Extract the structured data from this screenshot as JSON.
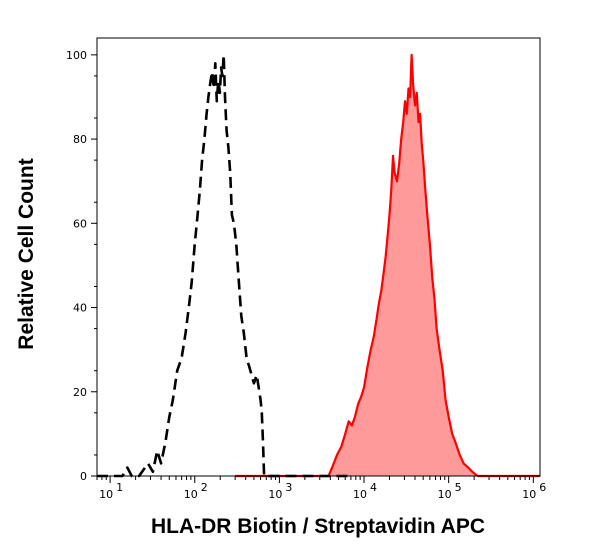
{
  "chart_data": {
    "type": "area",
    "xlabel": "HLA-DR Biotin / Streptavidin APC",
    "ylabel": "Relative Cell Count",
    "x_scale": "log",
    "xlim": [
      7,
      1200000
    ],
    "ylim": [
      0,
      104
    ],
    "x_ticks": [
      {
        "value": 10,
        "base": "10",
        "exp": "1"
      },
      {
        "value": 100,
        "base": "10",
        "exp": "2"
      },
      {
        "value": 1000,
        "base": "10",
        "exp": "3"
      },
      {
        "value": 10000,
        "base": "10",
        "exp": "4"
      },
      {
        "value": 100000,
        "base": "10",
        "exp": "5"
      },
      {
        "value": 1000000,
        "base": "10",
        "exp": "6"
      }
    ],
    "y_ticks": [
      0,
      20,
      40,
      60,
      80,
      100
    ],
    "grid": false,
    "legend": "none",
    "series": [
      {
        "style": "dashed",
        "color": "#000000",
        "fill": "none",
        "points": [
          [
            7,
            0
          ],
          [
            14,
            0
          ],
          [
            16,
            2
          ],
          [
            18,
            0
          ],
          [
            22,
            0
          ],
          [
            28,
            3
          ],
          [
            32,
            1
          ],
          [
            36,
            6
          ],
          [
            40,
            3
          ],
          [
            45,
            8
          ],
          [
            50,
            14
          ],
          [
            55,
            18
          ],
          [
            62,
            25
          ],
          [
            70,
            28
          ],
          [
            78,
            34
          ],
          [
            85,
            40
          ],
          [
            92,
            46
          ],
          [
            100,
            55
          ],
          [
            108,
            62
          ],
          [
            115,
            68
          ],
          [
            122,
            75
          ],
          [
            130,
            80
          ],
          [
            138,
            86
          ],
          [
            145,
            90
          ],
          [
            152,
            93
          ],
          [
            160,
            96
          ],
          [
            168,
            92
          ],
          [
            175,
            98
          ],
          [
            182,
            89
          ],
          [
            190,
            94
          ],
          [
            198,
            91
          ],
          [
            205,
            97
          ],
          [
            212,
            95
          ],
          [
            220,
            100
          ],
          [
            228,
            90
          ],
          [
            238,
            82
          ],
          [
            250,
            78
          ],
          [
            262,
            72
          ],
          [
            275,
            62
          ],
          [
            290,
            60
          ],
          [
            310,
            55
          ],
          [
            330,
            47
          ],
          [
            355,
            38
          ],
          [
            380,
            34
          ],
          [
            410,
            28
          ],
          [
            440,
            26
          ],
          [
            470,
            24
          ],
          [
            500,
            22
          ],
          [
            540,
            24
          ],
          [
            570,
            21
          ],
          [
            600,
            18
          ],
          [
            620,
            15
          ],
          [
            640,
            8
          ],
          [
            660,
            0
          ],
          [
            7000,
            0
          ]
        ]
      },
      {
        "style": "solid",
        "color": "#ff0000",
        "fill": "#ff9a9a",
        "points": [
          [
            300,
            0
          ],
          [
            3800,
            0
          ],
          [
            4200,
            2
          ],
          [
            4800,
            5
          ],
          [
            5400,
            7
          ],
          [
            6000,
            10
          ],
          [
            6600,
            13
          ],
          [
            7200,
            12
          ],
          [
            7800,
            14
          ],
          [
            8500,
            17
          ],
          [
            9300,
            19
          ],
          [
            10000,
            21
          ],
          [
            11000,
            26
          ],
          [
            12000,
            30
          ],
          [
            13000,
            33
          ],
          [
            14000,
            37
          ],
          [
            15000,
            41
          ],
          [
            16000,
            44
          ],
          [
            17000,
            48
          ],
          [
            18000,
            52
          ],
          [
            19000,
            57
          ],
          [
            20000,
            62
          ],
          [
            21000,
            68
          ],
          [
            22000,
            76
          ],
          [
            23000,
            72
          ],
          [
            24500,
            70
          ],
          [
            26000,
            74
          ],
          [
            27500,
            80
          ],
          [
            29000,
            84
          ],
          [
            30500,
            89
          ],
          [
            32000,
            86
          ],
          [
            33500,
            92
          ],
          [
            35000,
            90
          ],
          [
            36500,
            100
          ],
          [
            38000,
            93
          ],
          [
            40000,
            88
          ],
          [
            42000,
            91
          ],
          [
            44000,
            84
          ],
          [
            46000,
            86
          ],
          [
            48000,
            79
          ],
          [
            50000,
            75
          ],
          [
            53000,
            68
          ],
          [
            56000,
            62
          ],
          [
            60000,
            55
          ],
          [
            64000,
            47
          ],
          [
            68000,
            42
          ],
          [
            72000,
            35
          ],
          [
            78000,
            30
          ],
          [
            85000,
            25
          ],
          [
            92000,
            18
          ],
          [
            100000,
            14
          ],
          [
            110000,
            10
          ],
          [
            120000,
            8
          ],
          [
            135000,
            5
          ],
          [
            150000,
            3
          ],
          [
            170000,
            2
          ],
          [
            190000,
            1
          ],
          [
            220000,
            0
          ],
          [
            1200000,
            0
          ]
        ]
      }
    ]
  }
}
